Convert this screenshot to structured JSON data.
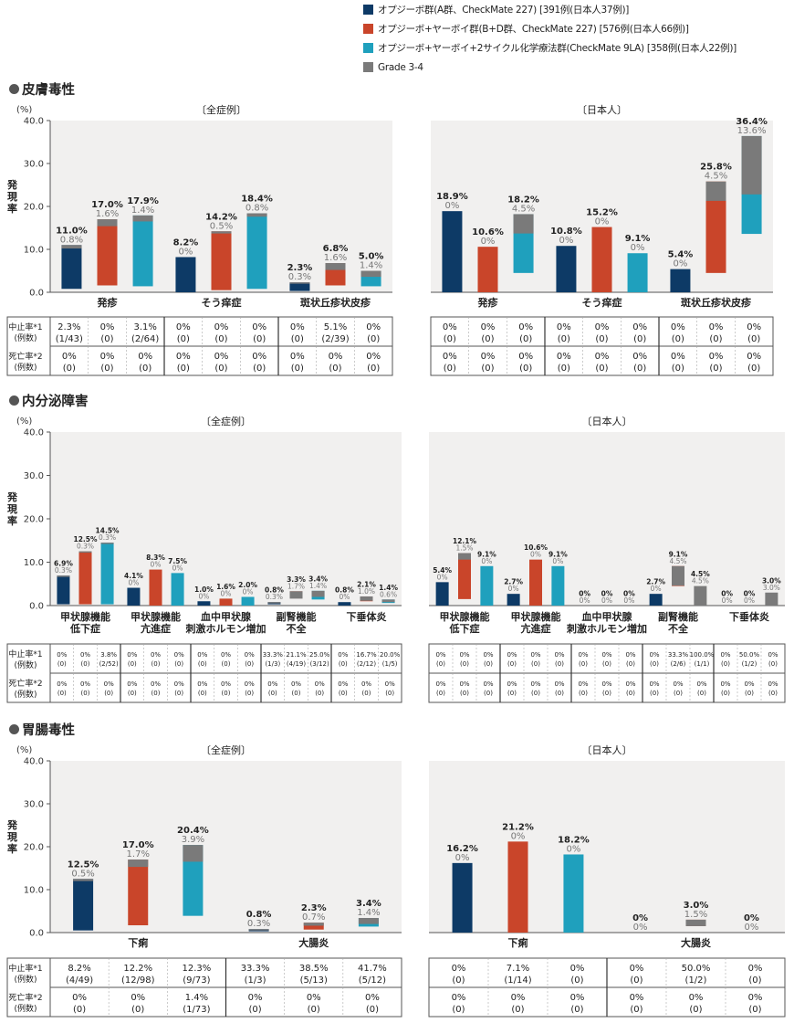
{
  "legend": [
    {
      "label": "オプジーボ群(A群、CheckMate 227) [391例(日本人37例)]",
      "color": "#0d3a66"
    },
    {
      "label": "オプジーボ+ヤーボイ群(B+D群、CheckMate 227) [576例(日本人66例)]",
      "color": "#c9452a"
    },
    {
      "label": "オプジーボ+ヤーボイ+2サイクル化学療法群(CheckMate 9LA) [358例(日本人22例)]",
      "color": "#1fa0bd"
    },
    {
      "label": "Grade 3-4",
      "color": "#7a7a7a"
    }
  ],
  "unit": "(%)",
  "ylabel": "発現率",
  "yticks": [
    "0.0",
    "10.0",
    "20.0",
    "30.0",
    "40.0"
  ],
  "row_labels": {
    "disc": [
      "中止率*1",
      "(例数)"
    ],
    "death": [
      "死亡率*2",
      "(例数)"
    ]
  },
  "chart_data": [
    {
      "type": "bar",
      "section": "皮膚毒性",
      "panel": "〔全症例〕",
      "ylim": [
        0,
        40
      ],
      "categories": [
        "発疹",
        "そう痒症",
        "斑状丘疹状皮疹"
      ],
      "series": [
        {
          "values": [
            11.0,
            8.2,
            2.3
          ],
          "labels": [
            "11.0%",
            "8.2%",
            "2.3%"
          ]
        },
        {
          "values": [
            17.0,
            14.2,
            6.8
          ],
          "labels": [
            "17.0%",
            "14.2%",
            "6.8%"
          ]
        },
        {
          "values": [
            17.9,
            18.4,
            5.0
          ],
          "labels": [
            "17.9%",
            "18.4%",
            "5.0%"
          ]
        }
      ],
      "grade34": [
        [
          0.8,
          0,
          0.3
        ],
        [
          1.6,
          0.5,
          1.6
        ],
        [
          1.4,
          0.8,
          1.4
        ]
      ],
      "grade34_labels": [
        [
          "0.8%",
          "0%",
          "0.3%"
        ],
        [
          "1.6%",
          "0.5%",
          "1.6%"
        ],
        [
          "1.4%",
          "0.8%",
          "1.4%"
        ]
      ],
      "disc": [
        [
          "2.3%",
          "(1/43)"
        ],
        [
          "0%",
          "(0)"
        ],
        [
          "3.1%",
          "(2/64)"
        ],
        [
          "0%",
          "(0)"
        ],
        [
          "0%",
          "(0)"
        ],
        [
          "0%",
          "(0)"
        ],
        [
          "0%",
          "(0)"
        ],
        [
          "5.1%",
          "(2/39)"
        ],
        [
          "0%",
          "(0)"
        ]
      ],
      "death": [
        [
          "0%",
          "(0)"
        ],
        [
          "0%",
          "(0)"
        ],
        [
          "0%",
          "(0)"
        ],
        [
          "0%",
          "(0)"
        ],
        [
          "0%",
          "(0)"
        ],
        [
          "0%",
          "(0)"
        ],
        [
          "0%",
          "(0)"
        ],
        [
          "0%",
          "(0)"
        ],
        [
          "0%",
          "(0)"
        ]
      ]
    },
    {
      "type": "bar",
      "section": "皮膚毒性",
      "panel": "〔日本人〕",
      "ylim": [
        0,
        40
      ],
      "categories": [
        "発疹",
        "そう痒症",
        "斑状丘疹状皮疹"
      ],
      "series": [
        {
          "values": [
            18.9,
            10.8,
            5.4
          ],
          "labels": [
            "18.9%",
            "10.8%",
            "5.4%"
          ]
        },
        {
          "values": [
            10.6,
            15.2,
            25.8
          ],
          "labels": [
            "10.6%",
            "15.2%",
            "25.8%"
          ]
        },
        {
          "values": [
            18.2,
            9.1,
            36.4
          ],
          "labels": [
            "18.2%",
            "9.1%",
            "36.4%"
          ]
        }
      ],
      "grade34": [
        [
          0,
          0,
          0
        ],
        [
          0,
          0,
          4.5
        ],
        [
          4.5,
          0,
          13.6
        ]
      ],
      "grade34_labels": [
        [
          "0%",
          "0%",
          "0%"
        ],
        [
          "0%",
          "0%",
          "4.5%"
        ],
        [
          "4.5%",
          "0%",
          "13.6%"
        ]
      ],
      "disc": [
        [
          "0%",
          "(0)"
        ],
        [
          "0%",
          "(0)"
        ],
        [
          "0%",
          "(0)"
        ],
        [
          "0%",
          "(0)"
        ],
        [
          "0%",
          "(0)"
        ],
        [
          "0%",
          "(0)"
        ],
        [
          "0%",
          "(0)"
        ],
        [
          "0%",
          "(0)"
        ],
        [
          "0%",
          "(0)"
        ]
      ],
      "death": [
        [
          "0%",
          "(0)"
        ],
        [
          "0%",
          "(0)"
        ],
        [
          "0%",
          "(0)"
        ],
        [
          "0%",
          "(0)"
        ],
        [
          "0%",
          "(0)"
        ],
        [
          "0%",
          "(0)"
        ],
        [
          "0%",
          "(0)"
        ],
        [
          "0%",
          "(0)"
        ],
        [
          "0%",
          "(0)"
        ]
      ]
    },
    {
      "type": "bar",
      "section": "内分泌障害",
      "panel": "〔全症例〕",
      "ylim": [
        0,
        40
      ],
      "categories": [
        "甲状腺機能\n低下症",
        "甲状腺機能\n亢進症",
        "血中甲状腺\n刺激ホルモン増加",
        "副腎機能\n不全",
        "下垂体炎"
      ],
      "series": [
        {
          "values": [
            6.9,
            4.1,
            1.0,
            0.8,
            0.8
          ],
          "labels": [
            "6.9%",
            "4.1%",
            "1.0%",
            "0.8%",
            "0.8%"
          ]
        },
        {
          "values": [
            12.5,
            8.3,
            1.6,
            3.3,
            2.1
          ],
          "labels": [
            "12.5%",
            "8.3%",
            "1.6%",
            "3.3%",
            "2.1%"
          ]
        },
        {
          "values": [
            14.5,
            7.5,
            2.0,
            3.4,
            1.4
          ],
          "labels": [
            "14.5%",
            "7.5%",
            "2.0%",
            "3.4%",
            "1.4%"
          ]
        }
      ],
      "grade34": [
        [
          0.3,
          0,
          0,
          0.3,
          0
        ],
        [
          0.3,
          0,
          0,
          1.7,
          1.0
        ],
        [
          0.3,
          0,
          0,
          1.4,
          0.6
        ]
      ],
      "grade34_labels": [
        [
          "0.3%",
          "0%",
          "0%",
          "0.3%",
          "0%"
        ],
        [
          "0.3%",
          "0%",
          "0%",
          "1.7%",
          "1.0%"
        ],
        [
          "0.3%",
          "0%",
          "0%",
          "1.4%",
          "0.6%"
        ]
      ],
      "disc": [
        [
          "0%",
          "(0)"
        ],
        [
          "0%",
          "(0)"
        ],
        [
          "3.8%",
          "(2/52)"
        ],
        [
          "0%",
          "(0)"
        ],
        [
          "0%",
          "(0)"
        ],
        [
          "0%",
          "(0)"
        ],
        [
          "0%",
          "(0)"
        ],
        [
          "0%",
          "(0)"
        ],
        [
          "0%",
          "(0)"
        ],
        [
          "33.3%",
          "(1/3)"
        ],
        [
          "21.1%",
          "(4/19)"
        ],
        [
          "25.0%",
          "(3/12)"
        ],
        [
          "0%",
          "(0)"
        ],
        [
          "16.7%",
          "(2/12)"
        ],
        [
          "20.0%",
          "(1/5)"
        ]
      ],
      "death": [
        [
          "0%",
          "(0)"
        ],
        [
          "0%",
          "(0)"
        ],
        [
          "0%",
          "(0)"
        ],
        [
          "0%",
          "(0)"
        ],
        [
          "0%",
          "(0)"
        ],
        [
          "0%",
          "(0)"
        ],
        [
          "0%",
          "(0)"
        ],
        [
          "0%",
          "(0)"
        ],
        [
          "0%",
          "(0)"
        ],
        [
          "0%",
          "(0)"
        ],
        [
          "0%",
          "(0)"
        ],
        [
          "0%",
          "(0)"
        ],
        [
          "0%",
          "(0)"
        ],
        [
          "0%",
          "(0)"
        ],
        [
          "0%",
          "(0)"
        ]
      ]
    },
    {
      "type": "bar",
      "section": "内分泌障害",
      "panel": "〔日本人〕",
      "ylim": [
        0,
        40
      ],
      "categories": [
        "甲状腺機能\n低下症",
        "甲状腺機能\n亢進症",
        "血中甲状腺\n刺激ホルモン増加",
        "副腎機能\n不全",
        "下垂体炎"
      ],
      "series": [
        {
          "values": [
            5.4,
            2.7,
            0,
            2.7,
            0
          ],
          "labels": [
            "5.4%",
            "2.7%",
            "0%",
            "2.7%",
            "0%"
          ]
        },
        {
          "values": [
            12.1,
            10.6,
            0,
            9.1,
            0
          ],
          "labels": [
            "12.1%",
            "10.6%",
            "0%",
            "9.1%",
            "0%"
          ]
        },
        {
          "values": [
            9.1,
            9.1,
            0,
            4.5,
            3.0
          ],
          "labels": [
            "9.1%",
            "9.1%",
            "0%",
            "4.5%",
            "3.0%"
          ]
        }
      ],
      "grade34": [
        [
          0,
          0,
          0,
          0,
          0
        ],
        [
          1.5,
          0,
          0,
          4.5,
          0
        ],
        [
          0,
          0,
          0,
          4.5,
          3.0
        ]
      ],
      "grade34_labels": [
        [
          "0%",
          "0%",
          "0%",
          "0%",
          "0%"
        ],
        [
          "1.5%",
          "0%",
          "0%",
          "4.5%",
          "0%"
        ],
        [
          "0%",
          "0%",
          "0%",
          "4.5%",
          "3.0%"
        ]
      ],
      "disc": [
        [
          "0%",
          "(0)"
        ],
        [
          "0%",
          "(0)"
        ],
        [
          "0%",
          "(0)"
        ],
        [
          "0%",
          "(0)"
        ],
        [
          "0%",
          "(0)"
        ],
        [
          "0%",
          "(0)"
        ],
        [
          "0%",
          "(0)"
        ],
        [
          "0%",
          "(0)"
        ],
        [
          "0%",
          "(0)"
        ],
        [
          "0%",
          "(0)"
        ],
        [
          "33.3%",
          "(2/6)"
        ],
        [
          "100.0%",
          "(1/1)"
        ],
        [
          "0%",
          "(0)"
        ],
        [
          "50.0%",
          "(1/2)"
        ],
        [
          "0%",
          "(0)"
        ]
      ],
      "death": [
        [
          "0%",
          "(0)"
        ],
        [
          "0%",
          "(0)"
        ],
        [
          "0%",
          "(0)"
        ],
        [
          "0%",
          "(0)"
        ],
        [
          "0%",
          "(0)"
        ],
        [
          "0%",
          "(0)"
        ],
        [
          "0%",
          "(0)"
        ],
        [
          "0%",
          "(0)"
        ],
        [
          "0%",
          "(0)"
        ],
        [
          "0%",
          "(0)"
        ],
        [
          "0%",
          "(0)"
        ],
        [
          "0%",
          "(0)"
        ],
        [
          "0%",
          "(0)"
        ],
        [
          "0%",
          "(0)"
        ],
        [
          "0%",
          "(0)"
        ]
      ]
    },
    {
      "type": "bar",
      "section": "胃腸毒性",
      "panel": "〔全症例〕",
      "ylim": [
        0,
        40
      ],
      "categories": [
        "下痢",
        "大腸炎"
      ],
      "series": [
        {
          "values": [
            12.5,
            0.8
          ],
          "labels": [
            "12.5%",
            "0.8%"
          ]
        },
        {
          "values": [
            17.0,
            2.3
          ],
          "labels": [
            "17.0%",
            "2.3%"
          ]
        },
        {
          "values": [
            20.4,
            3.4
          ],
          "labels": [
            "20.4%",
            "3.4%"
          ]
        }
      ],
      "grade34": [
        [
          0.5,
          0.3
        ],
        [
          1.7,
          0.7
        ],
        [
          3.9,
          1.4
        ]
      ],
      "grade34_labels": [
        [
          "0.5%",
          "0.3%"
        ],
        [
          "1.7%",
          "0.7%"
        ],
        [
          "3.9%",
          "1.4%"
        ]
      ],
      "disc": [
        [
          "8.2%",
          "(4/49)"
        ],
        [
          "12.2%",
          "(12/98)"
        ],
        [
          "12.3%",
          "(9/73)"
        ],
        [
          "33.3%",
          "(1/3)"
        ],
        [
          "38.5%",
          "(5/13)"
        ],
        [
          "41.7%",
          "(5/12)"
        ]
      ],
      "death": [
        [
          "0%",
          "(0)"
        ],
        [
          "0%",
          "(0)"
        ],
        [
          "1.4%",
          "(1/73)"
        ],
        [
          "0%",
          "(0)"
        ],
        [
          "0%",
          "(0)"
        ],
        [
          "0%",
          "(0)"
        ]
      ]
    },
    {
      "type": "bar",
      "section": "胃腸毒性",
      "panel": "〔日本人〕",
      "ylim": [
        0,
        40
      ],
      "categories": [
        "下痢",
        "大腸炎"
      ],
      "series": [
        {
          "values": [
            16.2,
            0
          ],
          "labels": [
            "16.2%",
            "0%"
          ]
        },
        {
          "values": [
            21.2,
            3.0
          ],
          "labels": [
            "21.2%",
            "3.0%"
          ]
        },
        {
          "values": [
            18.2,
            0
          ],
          "labels": [
            "18.2%",
            "0%"
          ]
        }
      ],
      "grade34": [
        [
          0,
          0
        ],
        [
          0,
          1.5
        ],
        [
          0,
          0
        ]
      ],
      "grade34_labels": [
        [
          "0%",
          "0%"
        ],
        [
          "0%",
          "1.5%"
        ],
        [
          "0%",
          "0%"
        ]
      ],
      "disc": [
        [
          "0%",
          "(0)"
        ],
        [
          "7.1%",
          "(1/14)"
        ],
        [
          "0%",
          "(0)"
        ],
        [
          "0%",
          "(0)"
        ],
        [
          "50.0%",
          "(1/2)"
        ],
        [
          "0%",
          "(0)"
        ]
      ],
      "death": [
        [
          "0%",
          "(0)"
        ],
        [
          "0%",
          "(0)"
        ],
        [
          "0%",
          "(0)"
        ],
        [
          "0%",
          "(0)"
        ],
        [
          "0%",
          "(0)"
        ],
        [
          "0%",
          "(0)"
        ]
      ]
    }
  ]
}
